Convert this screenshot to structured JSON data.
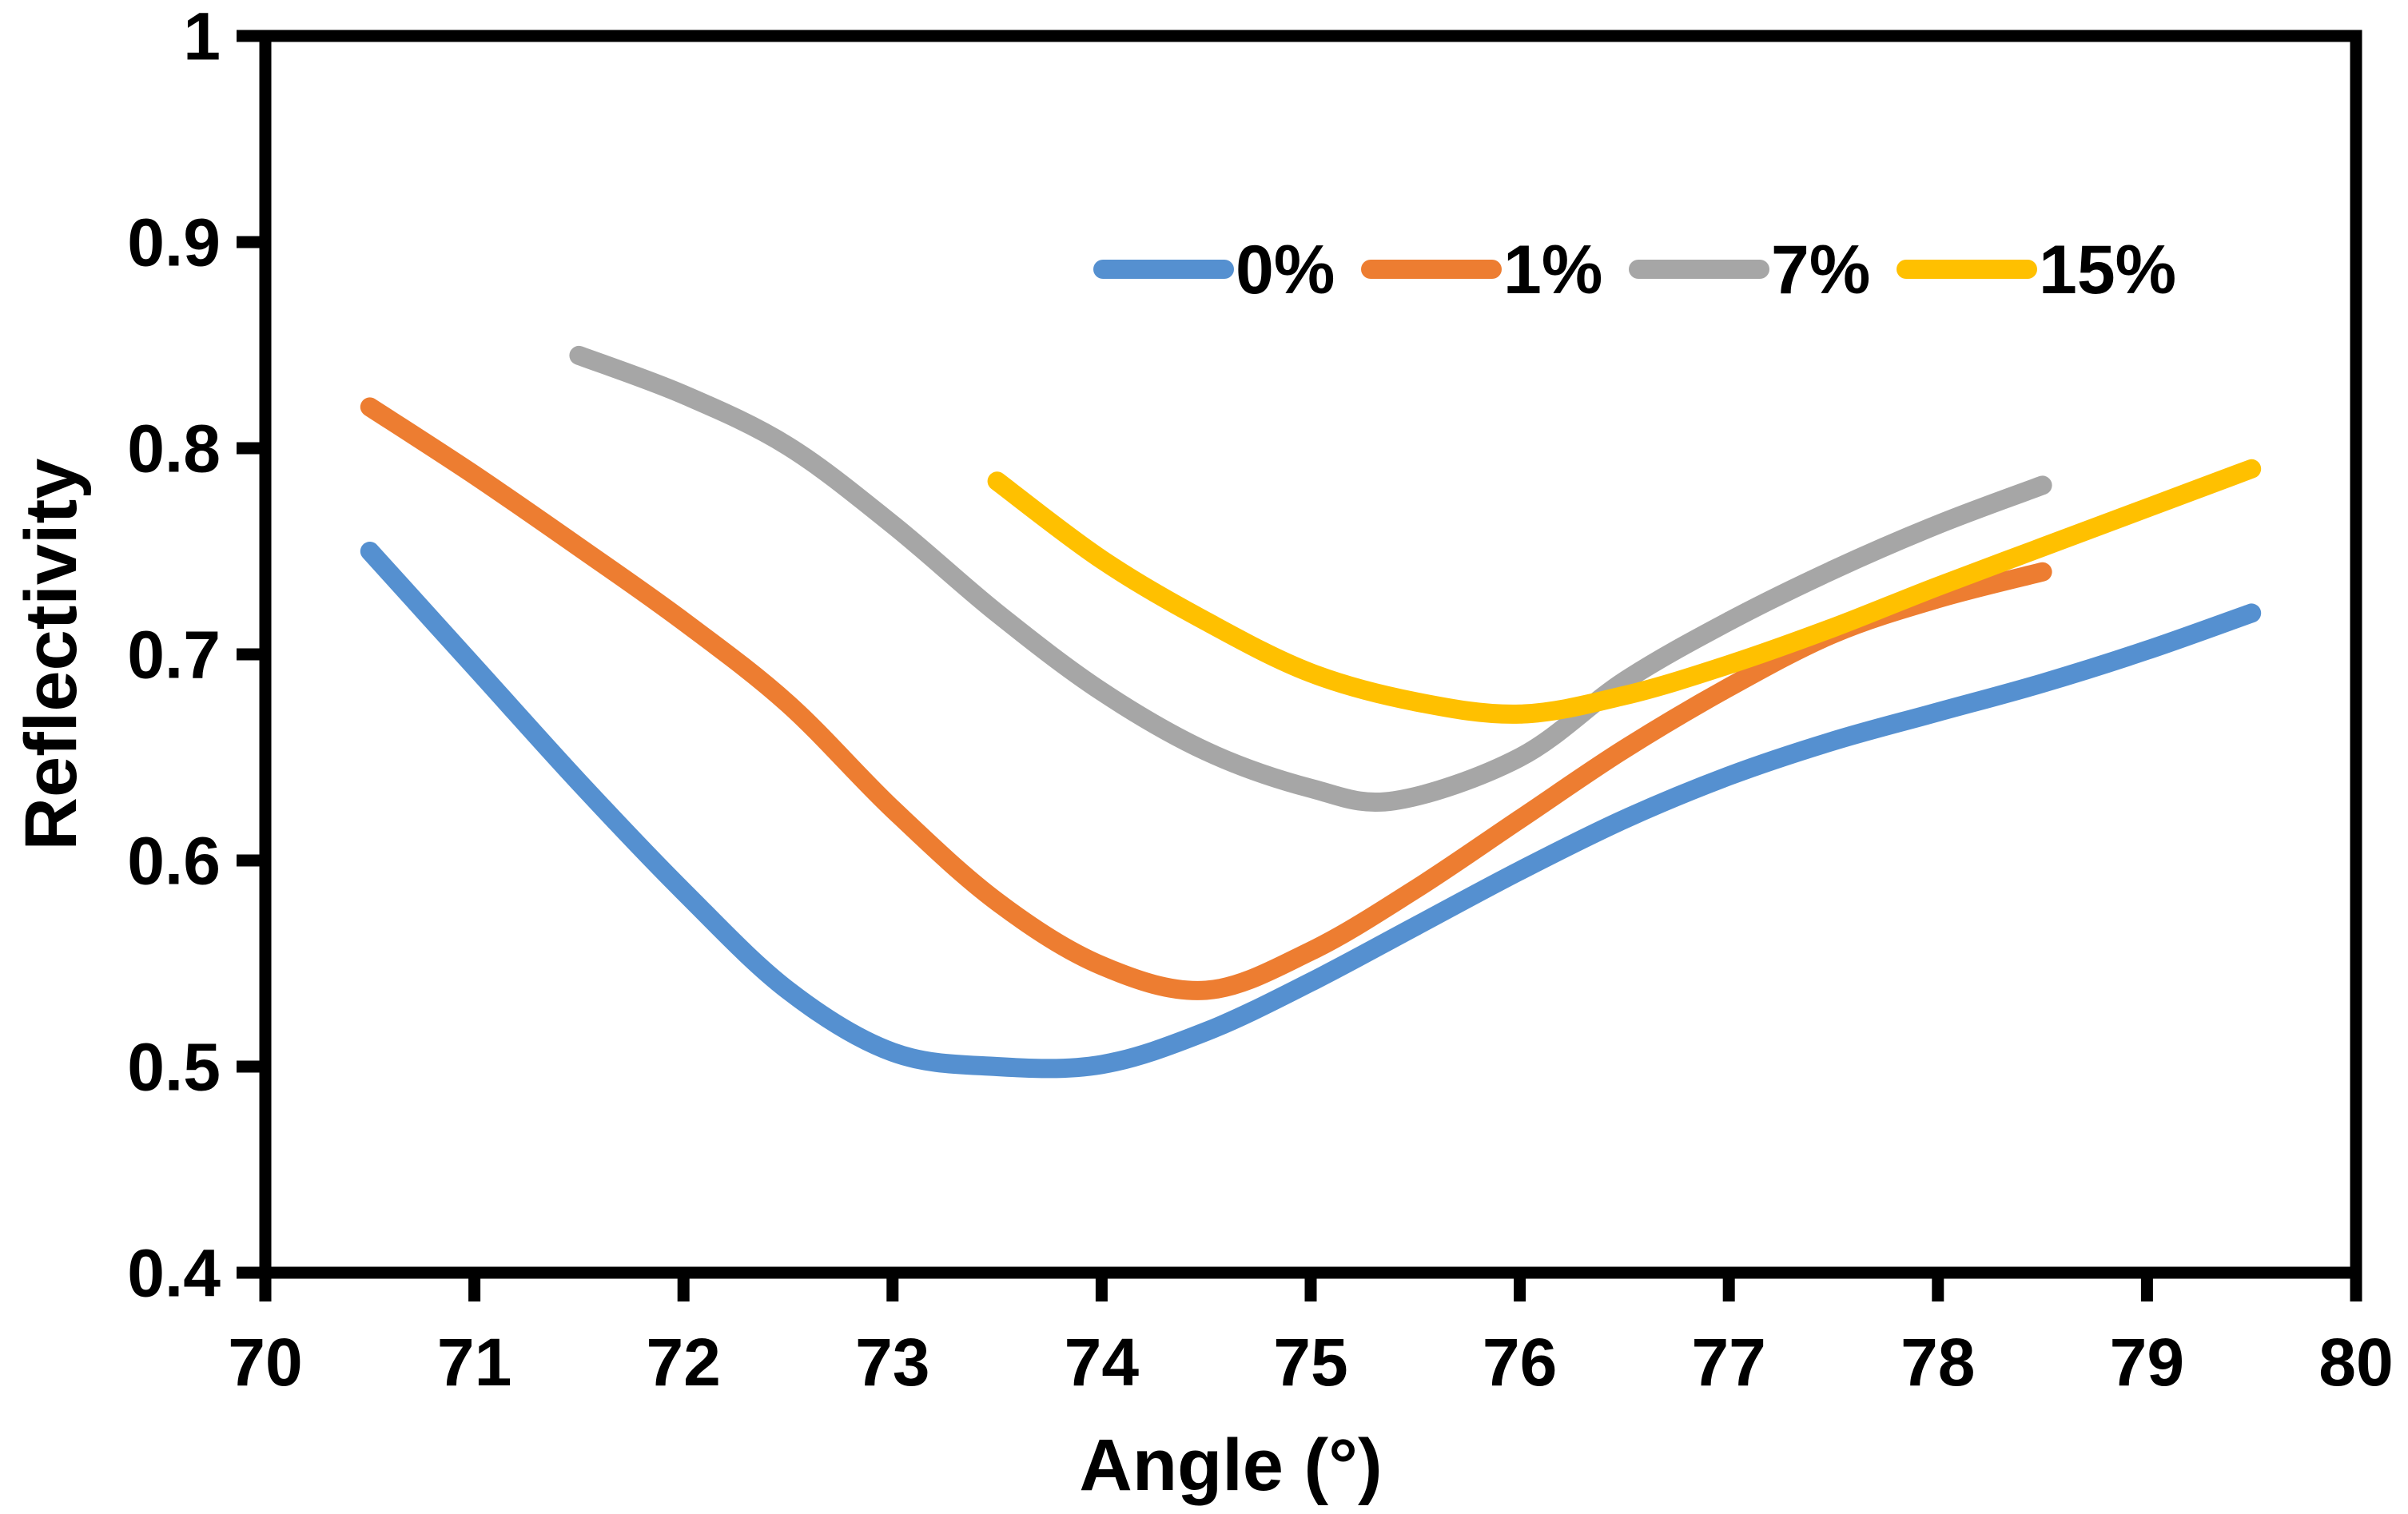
{
  "figure": {
    "background": "#FFFFFF",
    "axis_color": "#000000"
  },
  "chart_data": {
    "type": "line",
    "title": "",
    "xlabel": "Angle (°)",
    "ylabel": "Reflectivity",
    "xlim": [
      70,
      80
    ],
    "ylim": [
      0.4,
      1.0
    ],
    "grid": false,
    "legend_position": "inside-top-right",
    "x_ticks": {
      "values": [
        70,
        71,
        72,
        73,
        74,
        75,
        76,
        77,
        78,
        79,
        80
      ],
      "labels": [
        "70",
        "71",
        "72",
        "73",
        "74",
        "75",
        "76",
        "77",
        "78",
        "79",
        "80"
      ]
    },
    "y_ticks": {
      "values": [
        1.0,
        0.9,
        0.8,
        0.7,
        0.6,
        0.5,
        0.4
      ],
      "labels": [
        "1",
        "0.9",
        "0.8",
        "0.7",
        "0.6",
        "0.5",
        "0.4"
      ]
    },
    "series": [
      {
        "name": "0%",
        "color": "#5590D0",
        "points": [
          [
            70.5,
            0.75
          ],
          [
            71.0,
            0.694
          ],
          [
            71.5,
            0.638
          ],
          [
            72.0,
            0.585
          ],
          [
            72.5,
            0.537
          ],
          [
            73.0,
            0.507
          ],
          [
            73.5,
            0.5
          ],
          [
            74.0,
            0.501
          ],
          [
            74.5,
            0.517
          ],
          [
            75.0,
            0.541
          ],
          [
            75.5,
            0.568
          ],
          [
            76.0,
            0.595
          ],
          [
            76.5,
            0.62
          ],
          [
            77.0,
            0.641
          ],
          [
            77.5,
            0.658
          ],
          [
            78.0,
            0.672
          ],
          [
            78.5,
            0.686
          ],
          [
            79.0,
            0.702
          ],
          [
            79.5,
            0.72
          ]
        ]
      },
      {
        "name": "1%",
        "color": "#ED7D31",
        "points": [
          [
            70.5,
            0.82
          ],
          [
            71.0,
            0.787
          ],
          [
            71.5,
            0.752
          ],
          [
            72.0,
            0.716
          ],
          [
            72.5,
            0.676
          ],
          [
            73.0,
            0.625
          ],
          [
            73.5,
            0.58
          ],
          [
            74.0,
            0.549
          ],
          [
            74.5,
            0.537
          ],
          [
            75.0,
            0.556
          ],
          [
            75.5,
            0.586
          ],
          [
            76.0,
            0.62
          ],
          [
            76.5,
            0.654
          ],
          [
            77.0,
            0.684
          ],
          [
            77.5,
            0.71
          ],
          [
            78.0,
            0.727
          ],
          [
            78.5,
            0.74
          ]
        ]
      },
      {
        "name": "7%",
        "color": "#A6A6A6",
        "points": [
          [
            71.5,
            0.845
          ],
          [
            72.0,
            0.826
          ],
          [
            72.5,
            0.801
          ],
          [
            73.0,
            0.763
          ],
          [
            73.5,
            0.72
          ],
          [
            74.0,
            0.682
          ],
          [
            74.5,
            0.653
          ],
          [
            75.0,
            0.635
          ],
          [
            75.4,
            0.629
          ],
          [
            76.0,
            0.65
          ],
          [
            76.5,
            0.687
          ],
          [
            77.0,
            0.716
          ],
          [
            77.5,
            0.741
          ],
          [
            78.0,
            0.763
          ],
          [
            78.5,
            0.782
          ]
        ]
      },
      {
        "name": "15%",
        "color": "#FFC000",
        "points": [
          [
            73.5,
            0.784
          ],
          [
            74.0,
            0.746
          ],
          [
            74.5,
            0.716
          ],
          [
            75.0,
            0.691
          ],
          [
            75.5,
            0.677
          ],
          [
            76.0,
            0.671
          ],
          [
            76.5,
            0.68
          ],
          [
            77.0,
            0.695
          ],
          [
            77.5,
            0.713
          ],
          [
            78.0,
            0.733
          ],
          [
            78.5,
            0.752
          ],
          [
            79.0,
            0.771
          ],
          [
            79.5,
            0.79
          ]
        ]
      }
    ]
  }
}
